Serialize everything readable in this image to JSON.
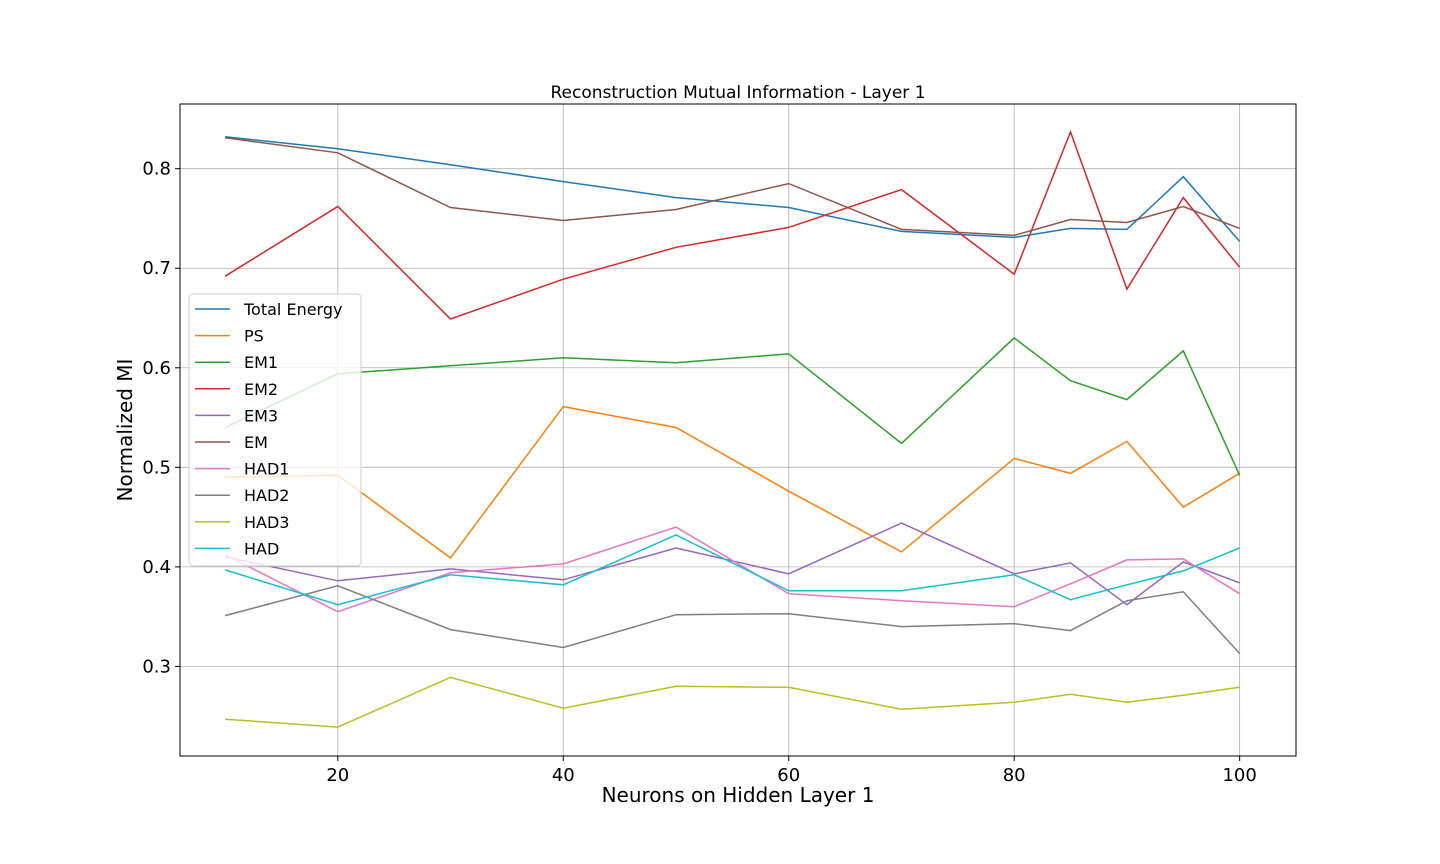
{
  "chart_data": {
    "type": "line",
    "title": "Reconstruction Mutual Information - Layer 1",
    "xlabel": "Neurons on Hidden Layer 1",
    "ylabel": "Normalized MI",
    "xlim": [
      6,
      105
    ],
    "ylim": [
      0.21,
      0.865
    ],
    "xticks": [
      20,
      40,
      60,
      80,
      100
    ],
    "yticks": [
      0.3,
      0.4,
      0.5,
      0.6,
      0.7,
      0.8
    ],
    "grid": true,
    "legend_position": "center-left",
    "x": [
      10,
      20,
      30,
      40,
      50,
      60,
      70,
      80,
      85,
      90,
      95,
      100
    ],
    "series": [
      {
        "name": "Total Energy",
        "color": "#1f77b4",
        "values": [
          0.832,
          0.82,
          0.804,
          0.787,
          0.771,
          0.761,
          0.737,
          0.731,
          0.74,
          0.739,
          0.792,
          0.727
        ]
      },
      {
        "name": "PS",
        "color": "#ff7f0e",
        "values": [
          0.49,
          0.492,
          0.409,
          0.561,
          0.54,
          0.476,
          0.415,
          0.509,
          0.494,
          0.526,
          0.46,
          0.494
        ]
      },
      {
        "name": "EM1",
        "color": "#2ca02c",
        "values": [
          0.54,
          0.594,
          0.602,
          0.61,
          0.605,
          0.614,
          0.524,
          0.63,
          0.587,
          0.568,
          0.617,
          0.492
        ]
      },
      {
        "name": "EM2",
        "color": "#d62728",
        "values": [
          0.692,
          0.762,
          0.649,
          0.689,
          0.721,
          0.741,
          0.779,
          0.694,
          0.837,
          0.679,
          0.771,
          0.701
        ]
      },
      {
        "name": "EM3",
        "color": "#9467bd",
        "values": [
          0.41,
          0.386,
          0.398,
          0.387,
          0.419,
          0.393,
          0.444,
          0.393,
          0.404,
          0.362,
          0.405,
          0.384
        ]
      },
      {
        "name": "EM",
        "color": "#8c564b",
        "values": [
          0.831,
          0.816,
          0.761,
          0.748,
          0.759,
          0.785,
          0.739,
          0.733,
          0.749,
          0.746,
          0.762,
          0.74
        ]
      },
      {
        "name": "HAD1",
        "color": "#e377c2",
        "values": [
          0.412,
          0.355,
          0.394,
          0.403,
          0.44,
          0.373,
          0.366,
          0.36,
          0.383,
          0.407,
          0.408,
          0.373
        ]
      },
      {
        "name": "HAD2",
        "color": "#7f7f7f",
        "values": [
          0.351,
          0.381,
          0.337,
          0.319,
          0.352,
          0.353,
          0.34,
          0.343,
          0.336,
          0.366,
          0.375,
          0.313
        ]
      },
      {
        "name": "HAD3",
        "color": "#bcbd22",
        "values": [
          0.247,
          0.239,
          0.289,
          0.258,
          0.28,
          0.279,
          0.257,
          0.264,
          0.272,
          0.264,
          0.271,
          0.279
        ]
      },
      {
        "name": "HAD",
        "color": "#17becf",
        "values": [
          0.397,
          0.362,
          0.392,
          0.382,
          0.432,
          0.376,
          0.376,
          0.392,
          0.367,
          0.382,
          0.396,
          0.419
        ]
      }
    ]
  }
}
